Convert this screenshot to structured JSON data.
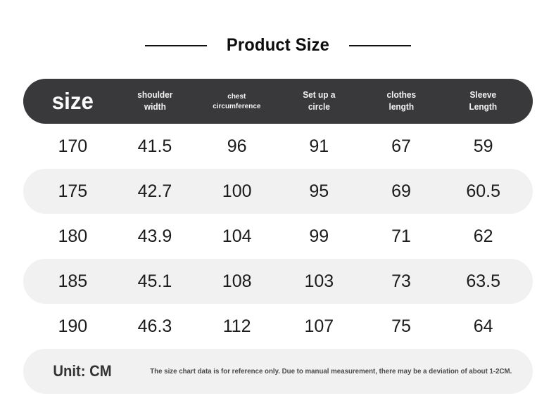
{
  "page": {
    "title": "Product Size"
  },
  "table": {
    "header": {
      "size_label": "size",
      "columns": [
        "shoulder\nwidth",
        "chest\ncircumference",
        "Set up a\ncircle",
        "clothes\nlength",
        "Sleeve\nLength"
      ]
    },
    "rows": [
      [
        "170",
        "41.5",
        "96",
        "91",
        "67",
        "59"
      ],
      [
        "175",
        "42.7",
        "100",
        "95",
        "69",
        "60.5"
      ],
      [
        "180",
        "43.9",
        "104",
        "99",
        "71",
        "62"
      ],
      [
        "185",
        "45.1",
        "108",
        "103",
        "73",
        "63.5"
      ],
      [
        "190",
        "46.3",
        "112",
        "107",
        "75",
        "64"
      ]
    ],
    "footer": {
      "unit_label": "Unit: CM",
      "note": "The size chart data is for reference only. Due to manual measurement, there may be a deviation of about 1-2CM."
    }
  },
  "colors": {
    "header_bg": "#39393b",
    "row_alt_bg": "#f1f1f2",
    "title_text": "#0c0c0c",
    "data_text": "#1b1b1b"
  },
  "chart_data": {
    "type": "table",
    "title": "Product Size",
    "unit": "CM",
    "columns": [
      "size",
      "shoulder width",
      "chest circumference",
      "Set up a circle",
      "clothes length",
      "Sleeve Length"
    ],
    "rows": [
      [
        170,
        41.5,
        96,
        91,
        67,
        59
      ],
      [
        175,
        42.7,
        100,
        95,
        69,
        60.5
      ],
      [
        180,
        43.9,
        104,
        99,
        71,
        62
      ],
      [
        185,
        45.1,
        108,
        103,
        73,
        63.5
      ],
      [
        190,
        46.3,
        112,
        107,
        75,
        64
      ]
    ],
    "note": "The size chart data is for reference only. Due to manual measurement, there may be a deviation of about 1-2CM."
  }
}
